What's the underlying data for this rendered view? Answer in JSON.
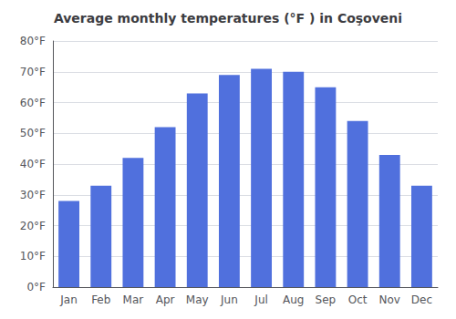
{
  "chart_data": {
    "type": "bar",
    "title": "Average monthly temperatures (°F ) in Coşoveni",
    "categories": [
      "Jan",
      "Feb",
      "Mar",
      "Apr",
      "May",
      "Jun",
      "Jul",
      "Aug",
      "Sep",
      "Oct",
      "Nov",
      "Dec"
    ],
    "values": [
      28,
      33,
      42,
      52,
      63,
      69,
      71,
      70,
      65,
      54,
      43,
      33
    ],
    "ylim": [
      0,
      80
    ],
    "yticks": [
      {
        "value": 0,
        "label": "0°F"
      },
      {
        "value": 10,
        "label": "10°F"
      },
      {
        "value": 20,
        "label": "20°F"
      },
      {
        "value": 30,
        "label": "30°F"
      },
      {
        "value": 40,
        "label": "40°F"
      },
      {
        "value": 50,
        "label": "50°F"
      },
      {
        "value": 60,
        "label": "60°F"
      },
      {
        "value": 70,
        "label": "70°F"
      },
      {
        "value": 80,
        "label": "80°F"
      }
    ],
    "grid": true
  }
}
